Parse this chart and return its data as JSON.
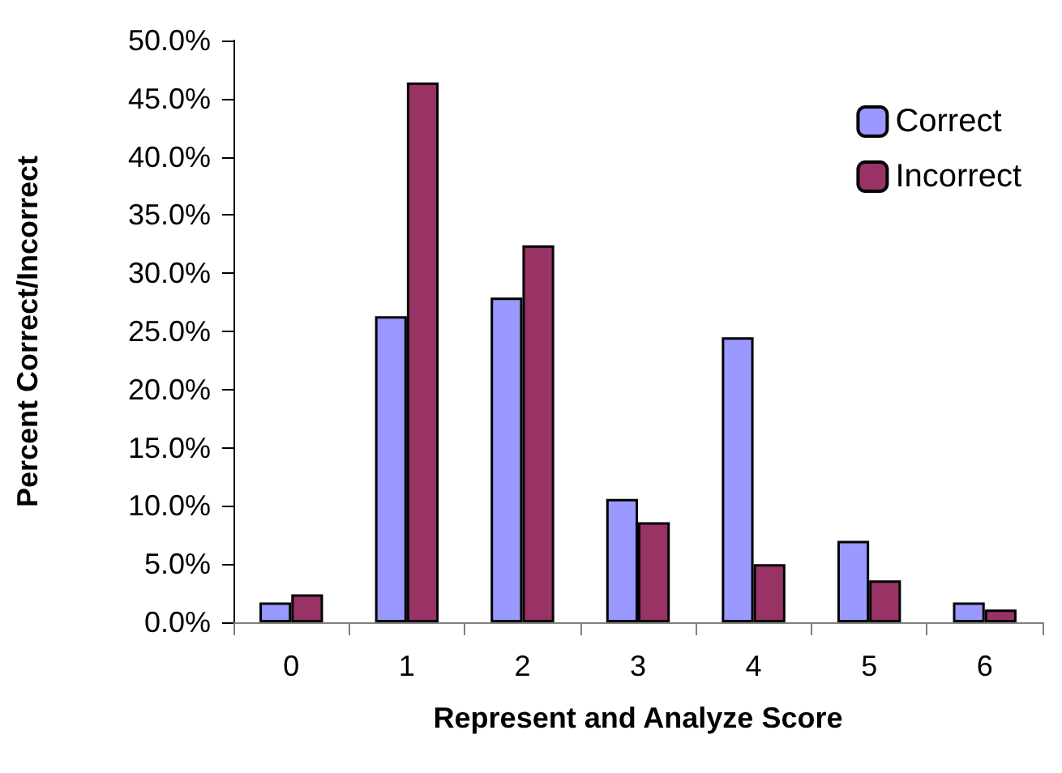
{
  "chart_data": {
    "type": "bar",
    "xlabel": "Represent and Analyze Score",
    "ylabel": "Percent Correct/Incorrect",
    "categories": [
      "0",
      "1",
      "2",
      "3",
      "4",
      "5",
      "6"
    ],
    "series": [
      {
        "name": "Correct",
        "color": "#9999ff",
        "values": [
          1.7,
          26.3,
          27.9,
          10.6,
          24.5,
          7.0,
          1.7
        ]
      },
      {
        "name": "Incorrect",
        "color": "#993366",
        "values": [
          2.4,
          46.4,
          32.4,
          8.6,
          5.0,
          3.6,
          1.1
        ]
      }
    ],
    "ylim": [
      0,
      50
    ],
    "yticks": [
      {
        "value": 0,
        "label": "0.0%"
      },
      {
        "value": 5,
        "label": "5.0%"
      },
      {
        "value": 10,
        "label": "10.0%"
      },
      {
        "value": 15,
        "label": "15.0%"
      },
      {
        "value": 20,
        "label": "20.0%"
      },
      {
        "value": 25,
        "label": "25.0%"
      },
      {
        "value": 30,
        "label": "30.0%"
      },
      {
        "value": 35,
        "label": "35.0%"
      },
      {
        "value": 40,
        "label": "40.0%"
      },
      {
        "value": 45,
        "label": "45.0%"
      },
      {
        "value": 50,
        "label": "50.0%"
      }
    ],
    "grid": false,
    "legend": "top right"
  }
}
